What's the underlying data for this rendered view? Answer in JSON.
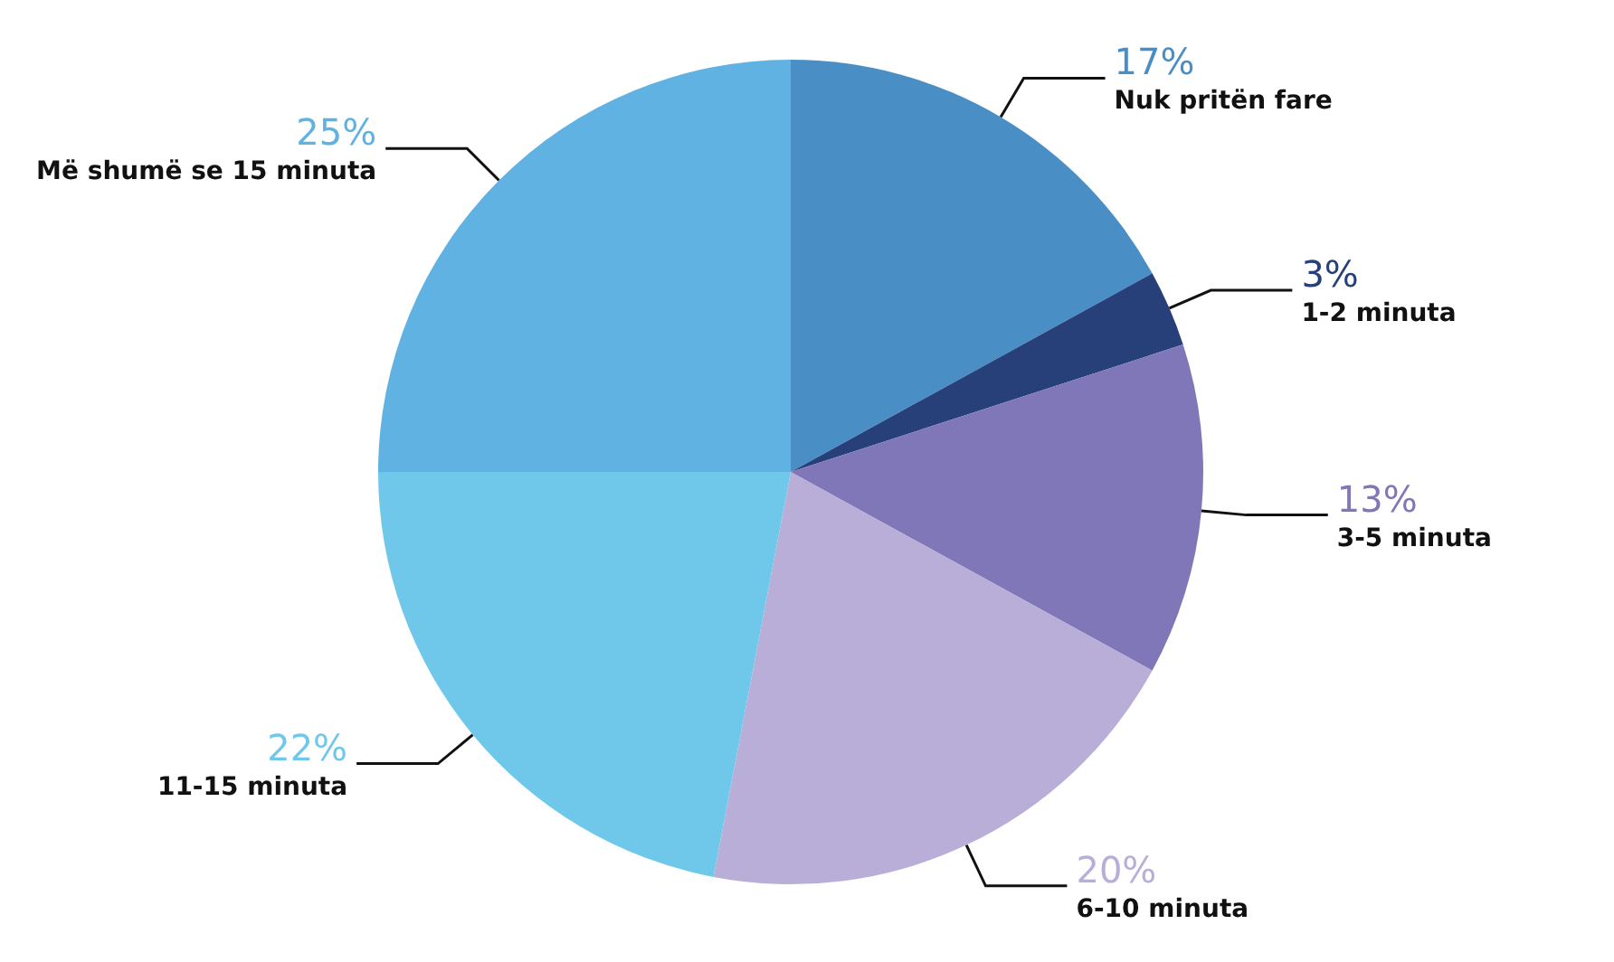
{
  "chart_data": {
    "type": "pie",
    "categories": [
      "Nuk pritën fare",
      "1-2 minuta",
      "3-5 minuta",
      "6-10 minuta",
      "11-15 minuta",
      "Më shumë se 15 minuta"
    ],
    "values": [
      17,
      3,
      13,
      20,
      22,
      25
    ],
    "colors": [
      "#4a8ec6",
      "#27407a",
      "#8077b9",
      "#b8aed8",
      "#6fc8ea",
      "#5fb2e2"
    ],
    "value_labels": [
      "17%",
      "3%",
      "13%",
      "20%",
      "22%",
      "25%"
    ]
  }
}
